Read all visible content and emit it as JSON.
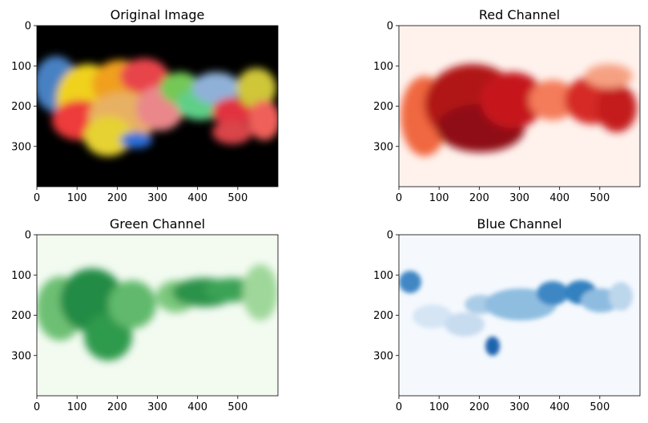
{
  "chart_data": [
    {
      "type": "heatmap",
      "title": "Original Image",
      "colormap": "rgb",
      "xlim": [
        0,
        600
      ],
      "ylim": [
        400,
        0
      ],
      "xticks": [
        0,
        100,
        200,
        300,
        400,
        500
      ],
      "yticks": [
        0,
        100,
        200,
        300
      ],
      "background": "#000000"
    },
    {
      "type": "heatmap",
      "title": "Red Channel",
      "colormap": "Reds",
      "xlim": [
        0,
        600
      ],
      "ylim": [
        400,
        0
      ],
      "xticks": [
        0,
        100,
        200,
        300,
        400,
        500
      ],
      "yticks": [
        0,
        100,
        200,
        300
      ],
      "background": "#fff2ed"
    },
    {
      "type": "heatmap",
      "title": "Green Channel",
      "colormap": "Greens",
      "xlim": [
        0,
        600
      ],
      "ylim": [
        400,
        0
      ],
      "xticks": [
        0,
        100,
        200,
        300,
        400,
        500
      ],
      "yticks": [
        0,
        100,
        200,
        300
      ],
      "background": "#f3fbf1"
    },
    {
      "type": "heatmap",
      "title": "Blue Channel",
      "colormap": "Blues",
      "xlim": [
        0,
        600
      ],
      "ylim": [
        400,
        0
      ],
      "xticks": [
        0,
        100,
        200,
        300,
        400,
        500
      ],
      "yticks": [
        0,
        100,
        200,
        300
      ],
      "background": "#f5f9fe"
    }
  ],
  "colors": {
    "reds": [
      "#fff5f0",
      "#fcbba1",
      "#fb6a4a",
      "#cb181d",
      "#67000d"
    ],
    "greens": [
      "#f7fcf5",
      "#c7e9c0",
      "#74c476",
      "#238b45",
      "#00441b"
    ],
    "blues": [
      "#f7fbff",
      "#c6dbef",
      "#6baed6",
      "#2171b5",
      "#08306b"
    ]
  }
}
